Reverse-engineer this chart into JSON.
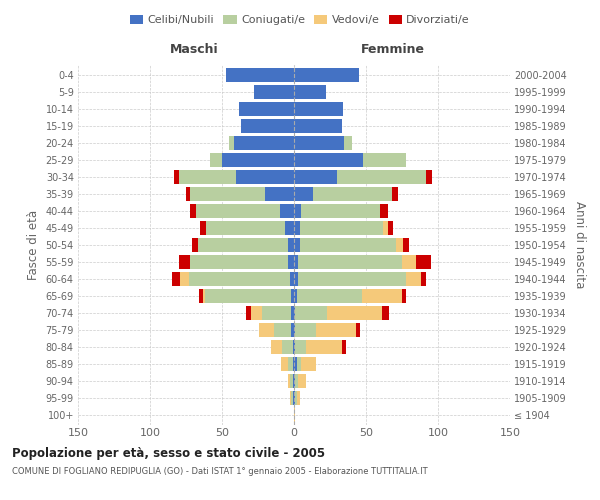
{
  "age_groups": [
    "100+",
    "95-99",
    "90-94",
    "85-89",
    "80-84",
    "75-79",
    "70-74",
    "65-69",
    "60-64",
    "55-59",
    "50-54",
    "45-49",
    "40-44",
    "35-39",
    "30-34",
    "25-29",
    "20-24",
    "15-19",
    "10-14",
    "5-9",
    "0-4"
  ],
  "birth_years": [
    "≤ 1904",
    "1905-1909",
    "1910-1914",
    "1915-1919",
    "1920-1924",
    "1925-1929",
    "1930-1934",
    "1935-1939",
    "1940-1944",
    "1945-1949",
    "1950-1954",
    "1955-1959",
    "1960-1964",
    "1965-1969",
    "1970-1974",
    "1975-1979",
    "1980-1984",
    "1985-1989",
    "1990-1994",
    "1995-1999",
    "2000-2004"
  ],
  "male_celibi": [
    0,
    1,
    1,
    1,
    1,
    2,
    2,
    2,
    3,
    4,
    4,
    6,
    10,
    20,
    40,
    50,
    42,
    37,
    38,
    28,
    47
  ],
  "male_coniugati": [
    0,
    1,
    2,
    3,
    7,
    12,
    20,
    60,
    70,
    68,
    63,
    55,
    58,
    52,
    40,
    8,
    3,
    0,
    0,
    0,
    0
  ],
  "male_vedovi": [
    0,
    1,
    1,
    5,
    8,
    10,
    8,
    1,
    6,
    0,
    0,
    0,
    0,
    0,
    0,
    0,
    0,
    0,
    0,
    0,
    0
  ],
  "male_divorziati": [
    0,
    0,
    0,
    0,
    0,
    0,
    3,
    3,
    6,
    8,
    4,
    4,
    4,
    3,
    3,
    0,
    0,
    0,
    0,
    0,
    0
  ],
  "female_celibi": [
    0,
    1,
    1,
    2,
    1,
    1,
    1,
    2,
    3,
    3,
    4,
    4,
    5,
    13,
    30,
    48,
    35,
    33,
    34,
    22,
    45
  ],
  "female_coniugati": [
    0,
    1,
    2,
    3,
    7,
    14,
    22,
    45,
    75,
    72,
    67,
    58,
    55,
    55,
    62,
    30,
    5,
    0,
    0,
    0,
    0
  ],
  "female_vedovi": [
    1,
    2,
    5,
    10,
    25,
    28,
    38,
    28,
    10,
    10,
    5,
    3,
    0,
    0,
    0,
    0,
    0,
    0,
    0,
    0,
    0
  ],
  "female_divorziati": [
    0,
    0,
    0,
    0,
    3,
    3,
    5,
    3,
    4,
    10,
    4,
    4,
    5,
    4,
    4,
    0,
    0,
    0,
    0,
    0,
    0
  ],
  "colors": {
    "celibi": "#4472c4",
    "coniugati": "#b8cfa0",
    "vedovi": "#f5c97a",
    "divorziati": "#cc0000"
  },
  "title": "Popolazione per età, sesso e stato civile - 2005",
  "subtitle": "COMUNE DI FOGLIANO REDIPUGLIA (GO) - Dati ISTAT 1° gennaio 2005 - Elaborazione TUTTITALIA.IT",
  "ylabel_left": "Fasce di età",
  "ylabel_right": "Anni di nascita",
  "xlim": 150,
  "background_color": "#ffffff",
  "grid_color": "#cccccc",
  "bar_height": 0.8
}
